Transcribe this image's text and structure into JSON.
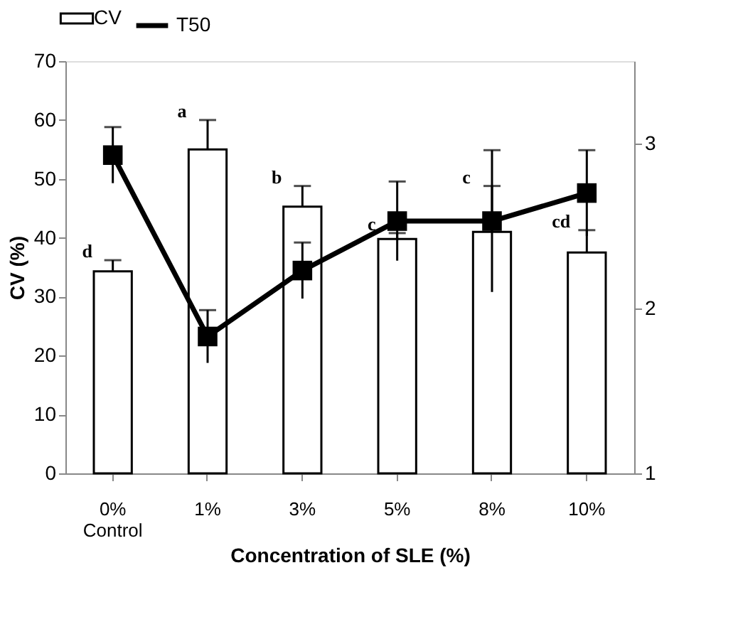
{
  "chart_data": {
    "type": "bar",
    "xlabel": "Concentration of SLE (%)",
    "ylabel": "CV (%)",
    "categories": [
      "0%\nControl",
      "1%",
      "3%",
      "5%",
      "8%",
      "10%"
    ],
    "series": [
      {
        "name": "CV",
        "color": "#ffffff",
        "values": [
          34.3,
          55.0,
          45.3,
          39.8,
          41.0,
          37.5
        ],
        "errors": [
          1.9,
          5.0,
          3.5,
          1.0,
          7.8,
          3.8
        ]
      },
      {
        "name": "T50",
        "type": "line",
        "axis": "y2",
        "color": "#000000",
        "marker": "square",
        "values": [
          2.93,
          1.83,
          2.23,
          2.53,
          2.53,
          2.7
        ],
        "errors": [
          0.17,
          0.16,
          0.17,
          0.24,
          0.43,
          0.26
        ]
      }
    ],
    "ylim": [
      0,
      70
    ],
    "yticks": [
      0,
      10,
      20,
      30,
      40,
      50,
      60,
      70
    ],
    "y2lim": [
      1,
      3.5
    ],
    "y2ticks": [
      1,
      2,
      3
    ],
    "annotations": [
      {
        "text": "d",
        "x": "0%\nControl",
        "y": 36.2
      },
      {
        "text": "a",
        "x": "1%",
        "y": 60.0
      },
      {
        "text": "b",
        "x": "3%",
        "y": 48.8
      },
      {
        "text": "c",
        "x": "5%",
        "y": 40.8
      },
      {
        "text": "c",
        "x": "8%",
        "y": 48.8
      },
      {
        "text": "cd",
        "x": "10%",
        "y": 41.3
      }
    ],
    "legend": "top",
    "grid": false
  }
}
